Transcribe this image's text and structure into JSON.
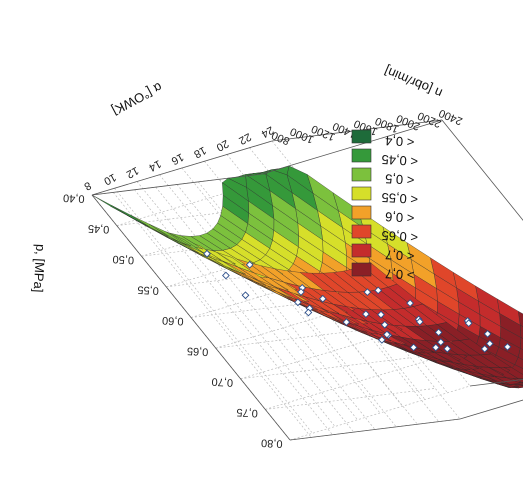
{
  "chart_data": {
    "type": "surface3d",
    "zlabel": "p, [MPa]",
    "xlabel": "n [obr/min]",
    "ylabel": "α [°OWK]",
    "z_ticks": [
      "0,40",
      "0,45",
      "0,50",
      "0,55",
      "0,60",
      "0,65",
      "0,70",
      "0,75",
      "0,80"
    ],
    "x_ticks": [
      "800",
      "1000",
      "1200",
      "1400",
      "1600",
      "1800",
      "2000",
      "2200",
      "2400"
    ],
    "y_ticks": [
      "8",
      "10",
      "12",
      "14",
      "16",
      "18",
      "20",
      "22",
      "24"
    ],
    "zlim": [
      0.4,
      0.8
    ],
    "xlim": [
      800,
      2400
    ],
    "ylim": [
      8,
      24
    ],
    "legend": {
      "placement": "right",
      "entries": [
        {
          "label": "< 0,4",
          "color": "#1e6b3a"
        },
        {
          "label": "< 0,45",
          "color": "#35993a"
        },
        {
          "label": "< 0,5",
          "color": "#7cc13d"
        },
        {
          "label": "< 0,55",
          "color": "#d6df2a"
        },
        {
          "label": "< 0,6",
          "color": "#f2a129"
        },
        {
          "label": "< 0,65",
          "color": "#e0462a"
        },
        {
          "label": "< 0,7",
          "color": "#c42c2c"
        },
        {
          "label": "> 0,7",
          "color": "#8a1f26"
        }
      ]
    },
    "points": [
      {
        "n": 900,
        "alpha": 12,
        "p": 0.52
      },
      {
        "n": 950,
        "alpha": 14,
        "p": 0.55
      },
      {
        "n": 1000,
        "alpha": 16,
        "p": 0.6
      },
      {
        "n": 1050,
        "alpha": 20,
        "p": 0.63
      },
      {
        "n": 1100,
        "alpha": 22,
        "p": 0.66
      },
      {
        "n": 1150,
        "alpha": 10,
        "p": 0.55
      },
      {
        "n": 1200,
        "alpha": 14,
        "p": 0.6
      },
      {
        "n": 1250,
        "alpha": 18,
        "p": 0.66
      },
      {
        "n": 1300,
        "alpha": 20,
        "p": 0.68
      },
      {
        "n": 1350,
        "alpha": 23,
        "p": 0.7
      },
      {
        "n": 1400,
        "alpha": 12,
        "p": 0.62
      },
      {
        "n": 1450,
        "alpha": 16,
        "p": 0.67
      },
      {
        "n": 1500,
        "alpha": 19,
        "p": 0.7
      },
      {
        "n": 1550,
        "alpha": 22,
        "p": 0.72
      },
      {
        "n": 1600,
        "alpha": 10,
        "p": 0.62
      },
      {
        "n": 1650,
        "alpha": 14,
        "p": 0.68
      },
      {
        "n": 1700,
        "alpha": 17,
        "p": 0.72
      },
      {
        "n": 1750,
        "alpha": 21,
        "p": 0.74
      },
      {
        "n": 1800,
        "alpha": 12,
        "p": 0.68
      },
      {
        "n": 1850,
        "alpha": 15,
        "p": 0.71
      },
      {
        "n": 1900,
        "alpha": 18,
        "p": 0.73
      },
      {
        "n": 1950,
        "alpha": 22,
        "p": 0.75
      },
      {
        "n": 2000,
        "alpha": 11,
        "p": 0.67
      },
      {
        "n": 2050,
        "alpha": 14,
        "p": 0.7
      },
      {
        "n": 2100,
        "alpha": 17,
        "p": 0.72
      },
      {
        "n": 2150,
        "alpha": 20,
        "p": 0.73
      },
      {
        "n": 2200,
        "alpha": 9,
        "p": 0.63
      },
      {
        "n": 2250,
        "alpha": 12,
        "p": 0.66
      },
      {
        "n": 2300,
        "alpha": 15,
        "p": 0.68
      },
      {
        "n": 2350,
        "alpha": 10,
        "p": 0.6
      },
      {
        "n": 1300,
        "alpha": 9,
        "p": 0.58
      },
      {
        "n": 1700,
        "alpha": 9,
        "p": 0.6
      },
      {
        "n": 1100,
        "alpha": 16,
        "p": 0.62
      },
      {
        "n": 1500,
        "alpha": 13,
        "p": 0.65
      },
      {
        "n": 1900,
        "alpha": 13,
        "p": 0.7
      },
      {
        "n": 2100,
        "alpha": 22,
        "p": 0.74
      }
    ]
  }
}
